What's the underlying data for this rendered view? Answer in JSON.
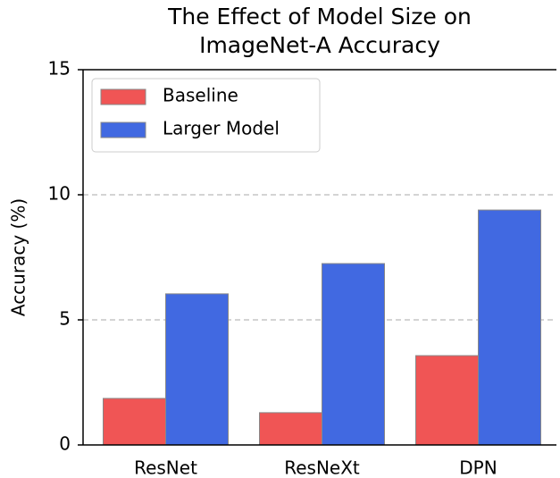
{
  "chart_data": {
    "type": "bar",
    "title": [
      "The Effect of Model Size on",
      "ImageNet-A Accuracy"
    ],
    "ylabel": "Accuracy (%)",
    "categories": [
      "ResNet",
      "ResNeXt",
      "DPN"
    ],
    "series": [
      {
        "name": "Baseline",
        "color": "#f05555",
        "values": [
          1.86,
          1.29,
          3.57
        ]
      },
      {
        "name": "Larger Model",
        "color": "#4169e1",
        "values": [
          6.04,
          7.25,
          9.39
        ]
      }
    ],
    "ylim": [
      0,
      15
    ],
    "yticks": [
      0,
      5,
      10,
      15
    ],
    "grid": true,
    "legend": "upper left"
  }
}
